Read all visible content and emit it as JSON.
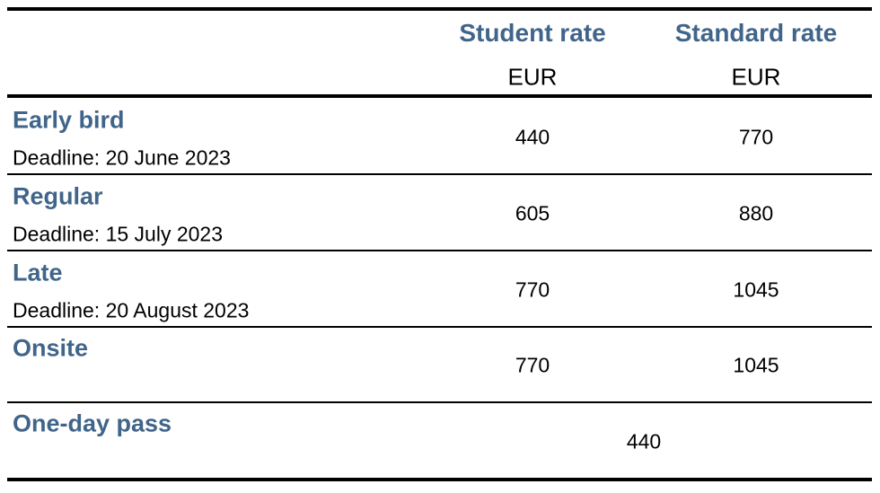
{
  "header": {
    "columns": [
      {
        "title": "Student rate",
        "unit": "EUR"
      },
      {
        "title": "Standard rate",
        "unit": "EUR"
      }
    ]
  },
  "rows": [
    {
      "label": "Early bird",
      "deadline": "Deadline: 20 June 2023",
      "student": 440,
      "standard": 770
    },
    {
      "label": "Regular",
      "deadline": "Deadline: 15 July 2023",
      "student": 605,
      "standard": 880
    },
    {
      "label": "Late",
      "deadline": "Deadline: 20 August 2023",
      "student": 770,
      "standard": 1045
    },
    {
      "label": "Onsite",
      "student": 770,
      "standard": 1045
    }
  ],
  "pass": {
    "label": "One-day pass",
    "value": 440
  }
}
